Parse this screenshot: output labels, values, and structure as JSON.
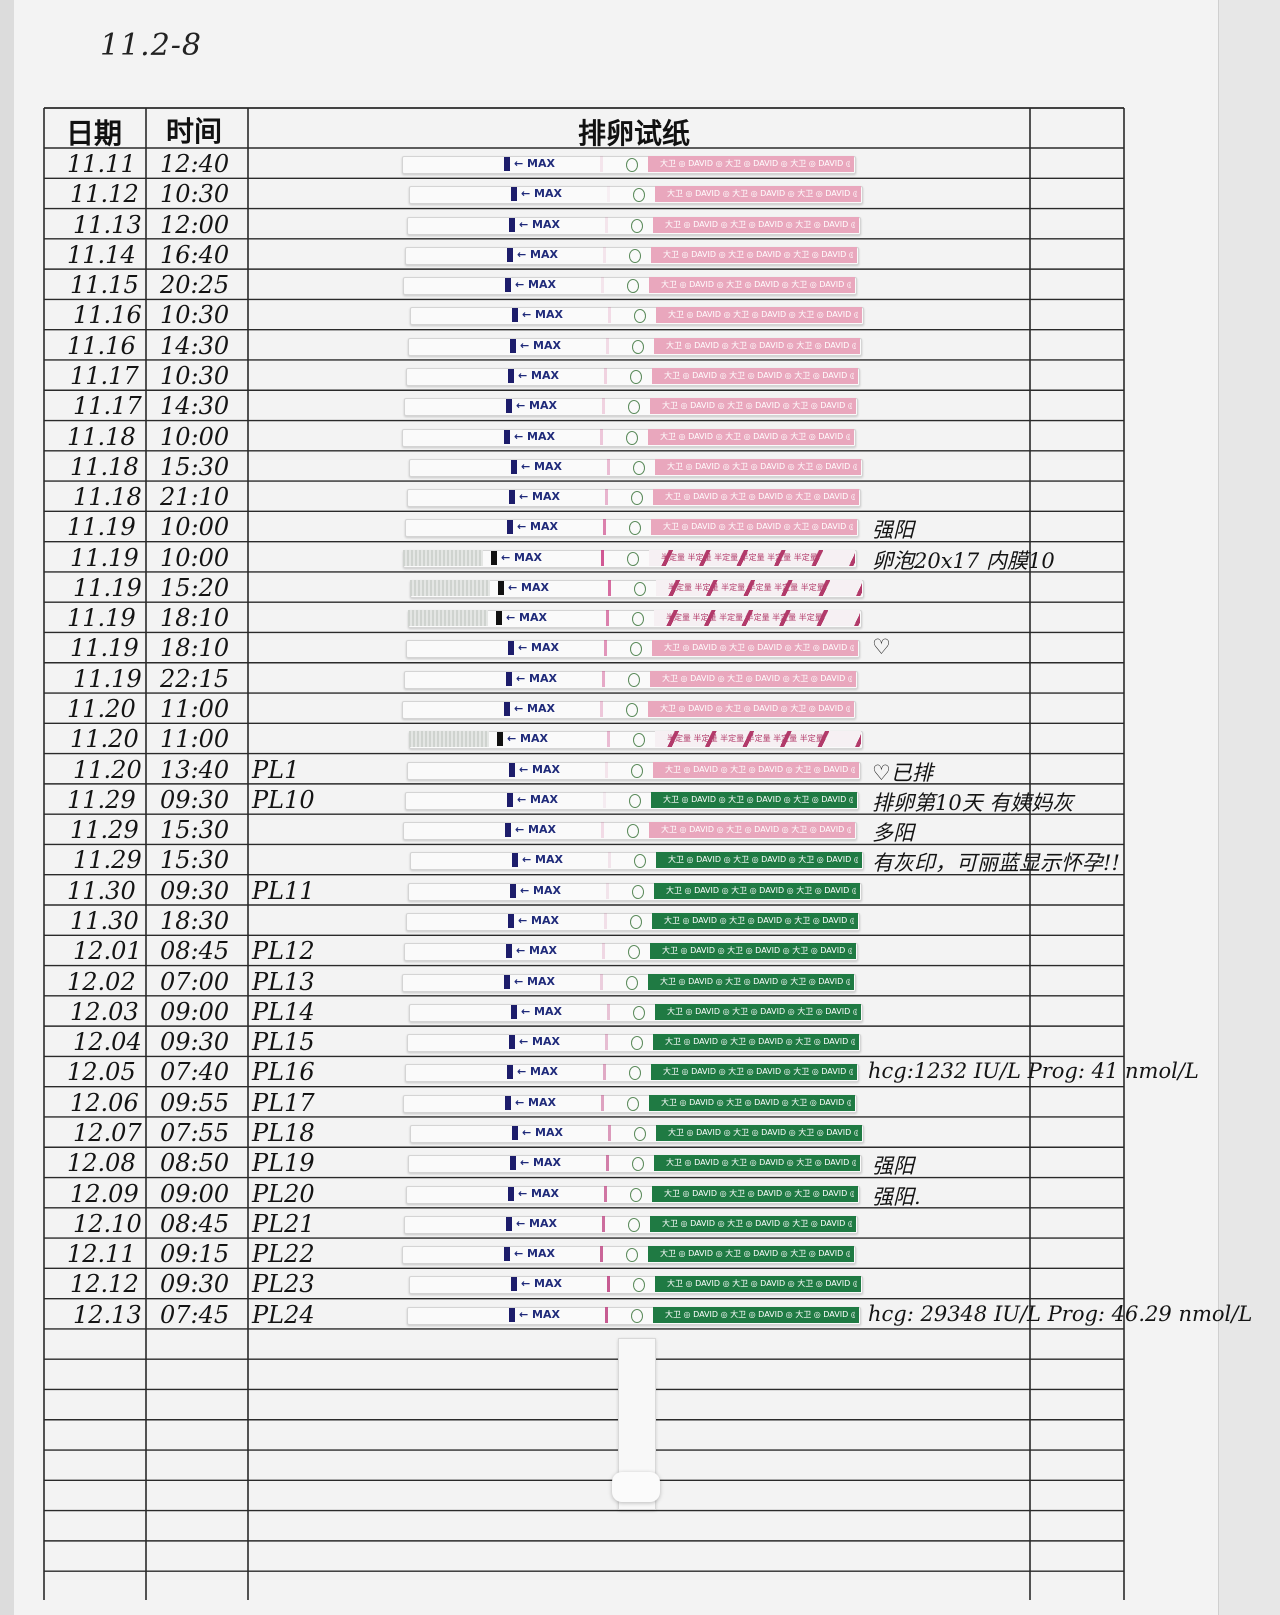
{
  "header_note": "11.2-8",
  "columns": {
    "date": "日期",
    "time": "时间",
    "strip": "排卵试纸"
  },
  "colors": {
    "paper": "#f3f3f3",
    "line": "#2a2a2a",
    "pink_strip": "#e9a7bd",
    "green_strip": "#1f7a43",
    "control_line": "#c7307a",
    "test_line_green": "#c14a86",
    "brand_text": "#1f2a7a"
  },
  "strip_labels": {
    "max": "MAX",
    "brand": "DAVID",
    "brand_cn": "大卫",
    "brand_alt": "半定量"
  },
  "rows": [
    {
      "date": "11.11",
      "time": "12:40",
      "id": "",
      "note": "",
      "strip": "pink",
      "test": 0.1
    },
    {
      "date": "11.12",
      "time": "10:30",
      "id": "",
      "note": "",
      "strip": "pink",
      "test": 0.05
    },
    {
      "date": "11.13",
      "time": "12:00",
      "id": "",
      "note": "",
      "strip": "pink",
      "test": 0.1
    },
    {
      "date": "11.14",
      "time": "16:40",
      "id": "",
      "note": "",
      "strip": "pink",
      "test": 0.1
    },
    {
      "date": "11.15",
      "time": "20:25",
      "id": "",
      "note": "",
      "strip": "pink",
      "test": 0.1
    },
    {
      "date": "11.16",
      "time": "10:30",
      "id": "",
      "note": "",
      "strip": "pink",
      "test": 0.15
    },
    {
      "date": "11.16",
      "time": "14:30",
      "id": "",
      "note": "",
      "strip": "pink",
      "test": 0.15
    },
    {
      "date": "11.17",
      "time": "10:30",
      "id": "",
      "note": "",
      "strip": "pink",
      "test": 0.2
    },
    {
      "date": "11.17",
      "time": "14:30",
      "id": "",
      "note": "",
      "strip": "pink",
      "test": 0.2
    },
    {
      "date": "11.18",
      "time": "10:00",
      "id": "",
      "note": "",
      "strip": "pink",
      "test": 0.25
    },
    {
      "date": "11.18",
      "time": "15:30",
      "id": "",
      "note": "",
      "strip": "pink",
      "test": 0.3
    },
    {
      "date": "11.18",
      "time": "21:10",
      "id": "",
      "note": "",
      "strip": "pink",
      "test": 0.35
    },
    {
      "date": "11.19",
      "time": "10:00",
      "id": "",
      "note": "强阳",
      "strip": "pink",
      "test": 0.6
    },
    {
      "date": "11.19",
      "time": "10:00",
      "id": "",
      "note": "卵泡20x17 内膜10",
      "strip": "semi",
      "test": 0.8
    },
    {
      "date": "11.19",
      "time": "15:20",
      "id": "",
      "note": "",
      "strip": "semi",
      "test": 0.7
    },
    {
      "date": "11.19",
      "time": "18:10",
      "id": "",
      "note": "",
      "strip": "semi",
      "test": 0.6
    },
    {
      "date": "11.19",
      "time": "18:10",
      "id": "",
      "note": "♡",
      "strip": "pink",
      "test": 0.5
    },
    {
      "date": "11.19",
      "time": "22:15",
      "id": "",
      "note": "",
      "strip": "pink",
      "test": 0.4
    },
    {
      "date": "11.20",
      "time": "11:00",
      "id": "",
      "note": "",
      "strip": "pink",
      "test": 0.25
    },
    {
      "date": "11.20",
      "time": "11:00",
      "id": "",
      "note": "",
      "strip": "semi",
      "test": 0.3
    },
    {
      "date": "11.20",
      "time": "13:40",
      "id": "PL1",
      "note": "♡已排",
      "strip": "pink",
      "test": 0.1
    },
    {
      "date": "11.29",
      "time": "09:30",
      "id": "PL10",
      "note": "排卵第10天 有姨妈灰",
      "strip": "green",
      "test": 0.08
    },
    {
      "date": "11.29",
      "time": "15:30",
      "id": "",
      "note": "多阳",
      "strip": "pink",
      "test": 0.15
    },
    {
      "date": "11.29",
      "time": "15:30",
      "id": "",
      "note": "有灰印，可丽蓝显示怀孕!!",
      "strip": "green",
      "test": 0.12
    },
    {
      "date": "11.30",
      "time": "09:30",
      "id": "PL11",
      "note": "",
      "strip": "green",
      "test": 0.12
    },
    {
      "date": "11.30",
      "time": "18:30",
      "id": "",
      "note": "",
      "strip": "green",
      "test": 0.15
    },
    {
      "date": "12.01",
      "time": "08:45",
      "id": "PL12",
      "note": "",
      "strip": "green",
      "test": 0.2
    },
    {
      "date": "12.02",
      "time": "07:00",
      "id": "PL13",
      "note": "",
      "strip": "green",
      "test": 0.25
    },
    {
      "date": "12.03",
      "time": "09:00",
      "id": "PL14",
      "note": "",
      "strip": "green",
      "test": 0.3
    },
    {
      "date": "12.04",
      "time": "09:30",
      "id": "PL15",
      "note": "",
      "strip": "green",
      "test": 0.35
    },
    {
      "date": "12.05",
      "time": "07:40",
      "id": "PL16",
      "note": "hcg:1232 IU/L   Prog: 41 nmol/L",
      "strip": "green",
      "test": 0.45
    },
    {
      "date": "12.06",
      "time": "09:55",
      "id": "PL17",
      "note": "",
      "strip": "green",
      "test": 0.5
    },
    {
      "date": "12.07",
      "time": "07:55",
      "id": "PL18",
      "note": "",
      "strip": "green",
      "test": 0.55
    },
    {
      "date": "12.08",
      "time": "08:50",
      "id": "PL19",
      "note": "强阳",
      "strip": "green",
      "test": 0.7
    },
    {
      "date": "12.09",
      "time": "09:00",
      "id": "PL20",
      "note": "强阳.",
      "strip": "green",
      "test": 0.75
    },
    {
      "date": "12.10",
      "time": "08:45",
      "id": "PL21",
      "note": "",
      "strip": "green",
      "test": 0.8
    },
    {
      "date": "12.11",
      "time": "09:15",
      "id": "PL22",
      "note": "",
      "strip": "green",
      "test": 0.85
    },
    {
      "date": "12.12",
      "time": "09:30",
      "id": "PL23",
      "note": "",
      "strip": "green",
      "test": 0.9
    },
    {
      "date": "12.13",
      "time": "07:45",
      "id": "PL24",
      "note": "hcg: 29348 IU/L   Prog: 46.29 nmol/L",
      "strip": "green",
      "test": 0.9
    }
  ]
}
